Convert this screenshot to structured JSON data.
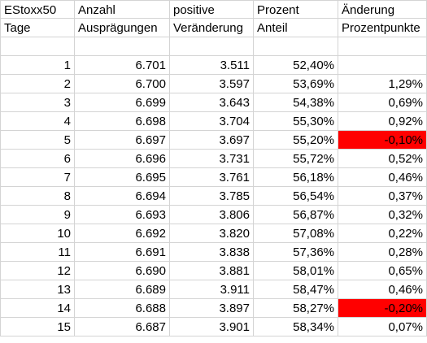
{
  "header": {
    "row1": [
      "EStoxx50",
      "Anzahl",
      "positive",
      "Prozent",
      "Änderung"
    ],
    "row2": [
      "Tage",
      "Ausprägungen",
      "Veränderung",
      "Anteil",
      "Prozentpunkte"
    ]
  },
  "rows": [
    {
      "tage": "1",
      "anzahl": "6.701",
      "positive": "3.511",
      "prozent": "52,40%",
      "aenderung": "",
      "negative": false
    },
    {
      "tage": "2",
      "anzahl": "6.700",
      "positive": "3.597",
      "prozent": "53,69%",
      "aenderung": "1,29%",
      "negative": false
    },
    {
      "tage": "3",
      "anzahl": "6.699",
      "positive": "3.643",
      "prozent": "54,38%",
      "aenderung": "0,69%",
      "negative": false
    },
    {
      "tage": "4",
      "anzahl": "6.698",
      "positive": "3.704",
      "prozent": "55,30%",
      "aenderung": "0,92%",
      "negative": false
    },
    {
      "tage": "5",
      "anzahl": "6.697",
      "positive": "3.697",
      "prozent": "55,20%",
      "aenderung": "-0,10%",
      "negative": true
    },
    {
      "tage": "6",
      "anzahl": "6.696",
      "positive": "3.731",
      "prozent": "55,72%",
      "aenderung": "0,52%",
      "negative": false
    },
    {
      "tage": "7",
      "anzahl": "6.695",
      "positive": "3.761",
      "prozent": "56,18%",
      "aenderung": "0,46%",
      "negative": false
    },
    {
      "tage": "8",
      "anzahl": "6.694",
      "positive": "3.785",
      "prozent": "56,54%",
      "aenderung": "0,37%",
      "negative": false
    },
    {
      "tage": "9",
      "anzahl": "6.693",
      "positive": "3.806",
      "prozent": "56,87%",
      "aenderung": "0,32%",
      "negative": false
    },
    {
      "tage": "10",
      "anzahl": "6.692",
      "positive": "3.820",
      "prozent": "57,08%",
      "aenderung": "0,22%",
      "negative": false
    },
    {
      "tage": "11",
      "anzahl": "6.691",
      "positive": "3.838",
      "prozent": "57,36%",
      "aenderung": "0,28%",
      "negative": false
    },
    {
      "tage": "12",
      "anzahl": "6.690",
      "positive": "3.881",
      "prozent": "58,01%",
      "aenderung": "0,65%",
      "negative": false
    },
    {
      "tage": "13",
      "anzahl": "6.689",
      "positive": "3.911",
      "prozent": "58,47%",
      "aenderung": "0,46%",
      "negative": false
    },
    {
      "tage": "14",
      "anzahl": "6.688",
      "positive": "3.897",
      "prozent": "58,27%",
      "aenderung": "-0,20%",
      "negative": true
    },
    {
      "tage": "15",
      "anzahl": "6.687",
      "positive": "3.901",
      "prozent": "58,34%",
      "aenderung": "0,07%",
      "negative": false
    }
  ],
  "colors": {
    "negative_fill": "#ff0000",
    "gridline": "#d4d4d4"
  }
}
